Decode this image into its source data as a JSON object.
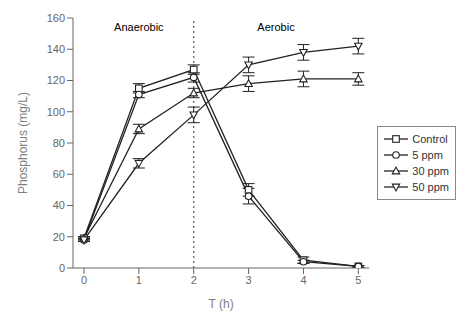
{
  "chart_data": {
    "type": "line",
    "x": [
      0,
      1,
      2,
      3,
      4,
      5
    ],
    "series": [
      {
        "name": "Control",
        "color": "#222222",
        "marker": "square",
        "values": [
          19,
          115,
          127,
          50,
          5,
          1
        ],
        "yerr": [
          1,
          3,
          3,
          4,
          2,
          0.5
        ]
      },
      {
        "name": "5 ppm",
        "color": "#222222",
        "marker": "circle",
        "values": [
          18,
          111,
          122,
          46,
          4,
          1
        ],
        "yerr": [
          1,
          2,
          3,
          5,
          1,
          0.5
        ]
      },
      {
        "name": "30 ppm",
        "color": "#222222",
        "marker": "triangle-up",
        "values": [
          19,
          89,
          112,
          118,
          121,
          121
        ],
        "yerr": [
          1,
          3,
          3,
          5,
          5,
          4
        ]
      },
      {
        "name": "50 ppm",
        "color": "#222222",
        "marker": "triangle-down",
        "values": [
          18,
          67,
          98,
          130,
          138,
          142
        ],
        "yerr": [
          1,
          3,
          5,
          5,
          5,
          5
        ]
      }
    ],
    "xlabel": "T (h)",
    "ylabel": "Phosphorus (mg/L)",
    "xlim": [
      -0.2,
      5.2
    ],
    "ylim": [
      0,
      160
    ],
    "xticks": [
      0,
      1,
      2,
      3,
      4,
      5
    ],
    "yticks": [
      0,
      20,
      40,
      60,
      80,
      100,
      120,
      140,
      160
    ],
    "grid": false,
    "legend": "right",
    "annotations": [
      {
        "type": "vline",
        "x": 2
      },
      {
        "type": "text",
        "text": "Anaerobic",
        "x": 1.0,
        "y": 158
      },
      {
        "type": "text",
        "text": "Aerobic",
        "x": 3.5,
        "y": 158
      }
    ]
  }
}
